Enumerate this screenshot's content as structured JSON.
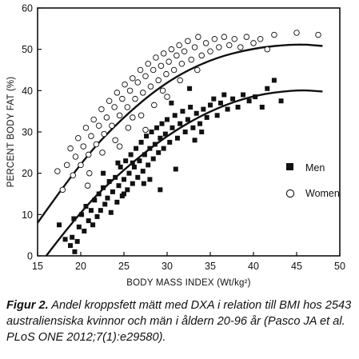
{
  "chart_data": {
    "type": "scatter",
    "title": "",
    "xlabel": "BODY MASS INDEX (Wt/kg²)",
    "ylabel": "PERCENT BODY FAT (%)",
    "xlim": [
      15,
      50
    ],
    "ylim": [
      0,
      60
    ],
    "xticks": [
      "15",
      "20",
      "25",
      "30",
      "35",
      "40",
      "45",
      "50"
    ],
    "yticks": [
      "0",
      "10",
      "20",
      "30",
      "40",
      "50",
      "60"
    ],
    "legend_position": "right",
    "series": [
      {
        "name": "Men",
        "marker": "filled-square",
        "color": "#111111",
        "points": [
          [
            17.5,
            7.5
          ],
          [
            18.2,
            4
          ],
          [
            18.8,
            2.5
          ],
          [
            19,
            4.5
          ],
          [
            19.3,
            1
          ],
          [
            19.6,
            3.5
          ],
          [
            19.2,
            9
          ],
          [
            19.8,
            7
          ],
          [
            20.1,
            10
          ],
          [
            20.4,
            6
          ],
          [
            20.6,
            12
          ],
          [
            20.9,
            8.5
          ],
          [
            21.2,
            11
          ],
          [
            21.4,
            7.5
          ],
          [
            21.6,
            13.5
          ],
          [
            21.9,
            9.5
          ],
          [
            22.1,
            15
          ],
          [
            22.3,
            11
          ],
          [
            22.6,
            16.5
          ],
          [
            22.8,
            12.5
          ],
          [
            23.1,
            14
          ],
          [
            23.3,
            18
          ],
          [
            23.5,
            10.5
          ],
          [
            23.7,
            15.5
          ],
          [
            24,
            19
          ],
          [
            24.2,
            13
          ],
          [
            24.4,
            17
          ],
          [
            24.6,
            21.5
          ],
          [
            24.8,
            14.5
          ],
          [
            25,
            18.5
          ],
          [
            25.2,
            23
          ],
          [
            25.4,
            16
          ],
          [
            25.6,
            20
          ],
          [
            25.8,
            24.5
          ],
          [
            26,
            17.5
          ],
          [
            26.2,
            21.5
          ],
          [
            26.4,
            26
          ],
          [
            26.6,
            19
          ],
          [
            26.8,
            23
          ],
          [
            27,
            27.5
          ],
          [
            27.2,
            20.5
          ],
          [
            27.4,
            24.5
          ],
          [
            27.6,
            29
          ],
          [
            27.8,
            22
          ],
          [
            28,
            26
          ],
          [
            28.2,
            30
          ],
          [
            28.4,
            23.5
          ],
          [
            28.6,
            27
          ],
          [
            28.8,
            31
          ],
          [
            29,
            25
          ],
          [
            29.2,
            28.5
          ],
          [
            29.4,
            32
          ],
          [
            29.6,
            26
          ],
          [
            29.8,
            29.5
          ],
          [
            30,
            33
          ],
          [
            30.3,
            27.5
          ],
          [
            30.6,
            31
          ],
          [
            30.9,
            34
          ],
          [
            31.2,
            28.5
          ],
          [
            31.5,
            32
          ],
          [
            31.8,
            35
          ],
          [
            32.1,
            30
          ],
          [
            32.4,
            33
          ],
          [
            32.7,
            36
          ],
          [
            33,
            31
          ],
          [
            33.4,
            34.5
          ],
          [
            33.8,
            32
          ],
          [
            34.2,
            35.5
          ],
          [
            34.6,
            33.5
          ],
          [
            35,
            36.5
          ],
          [
            35.4,
            38
          ],
          [
            35.8,
            34
          ],
          [
            36.2,
            37
          ],
          [
            36.6,
            39
          ],
          [
            37,
            35.5
          ],
          [
            37.6,
            38
          ],
          [
            38.2,
            36
          ],
          [
            38.8,
            39
          ],
          [
            39.5,
            37.5
          ],
          [
            40.2,
            38.5
          ],
          [
            41,
            36
          ],
          [
            41.6,
            40.5
          ],
          [
            42.4,
            42.5
          ],
          [
            43.2,
            37.5
          ],
          [
            29.2,
            16
          ],
          [
            31,
            21
          ],
          [
            28,
            18.5
          ],
          [
            25,
            15
          ],
          [
            30.5,
            37
          ],
          [
            33.2,
            28
          ],
          [
            26,
            22.5
          ],
          [
            27.3,
            17.5
          ],
          [
            24.3,
            22.5
          ],
          [
            22.6,
            20
          ],
          [
            32.6,
            40.5
          ],
          [
            34,
            30
          ]
        ]
      },
      {
        "name": "Women",
        "marker": "open-circle",
        "color": "#111111",
        "points": [
          [
            17.3,
            20.5
          ],
          [
            17.9,
            16
          ],
          [
            18.4,
            22
          ],
          [
            18.8,
            26
          ],
          [
            19.1,
            19.5
          ],
          [
            19.4,
            24
          ],
          [
            19.7,
            28.5
          ],
          [
            20,
            22
          ],
          [
            20.3,
            26.5
          ],
          [
            20.6,
            31
          ],
          [
            20.9,
            24.5
          ],
          [
            21.2,
            29
          ],
          [
            21.5,
            33
          ],
          [
            21.8,
            27
          ],
          [
            22.1,
            31.5
          ],
          [
            22.4,
            35.5
          ],
          [
            22.7,
            29.5
          ],
          [
            23,
            33.5
          ],
          [
            23.3,
            37.5
          ],
          [
            23.6,
            31.5
          ],
          [
            23.9,
            36
          ],
          [
            24.2,
            39.5
          ],
          [
            24.5,
            34
          ],
          [
            24.8,
            38
          ],
          [
            25.1,
            41.5
          ],
          [
            25.4,
            36
          ],
          [
            25.7,
            40
          ],
          [
            26,
            43
          ],
          [
            26.3,
            38
          ],
          [
            26.6,
            42
          ],
          [
            26.9,
            45
          ],
          [
            27.2,
            39.5
          ],
          [
            27.5,
            43.5
          ],
          [
            27.8,
            46.5
          ],
          [
            28.1,
            41
          ],
          [
            28.4,
            45
          ],
          [
            28.7,
            48
          ],
          [
            29,
            42.5
          ],
          [
            29.3,
            46
          ],
          [
            29.6,
            49
          ],
          [
            29.9,
            44
          ],
          [
            30.2,
            47
          ],
          [
            30.5,
            50
          ],
          [
            30.8,
            45
          ],
          [
            31.1,
            48.5
          ],
          [
            31.4,
            51
          ],
          [
            31.7,
            46.5
          ],
          [
            32,
            49.5
          ],
          [
            32.4,
            52
          ],
          [
            32.8,
            47.5
          ],
          [
            33.2,
            50.5
          ],
          [
            33.6,
            53
          ],
          [
            34,
            48.5
          ],
          [
            34.5,
            51.5
          ],
          [
            35,
            49.5
          ],
          [
            35.5,
            52.5
          ],
          [
            36,
            50.5
          ],
          [
            36.6,
            53
          ],
          [
            37.2,
            51
          ],
          [
            37.8,
            52.5
          ],
          [
            38.5,
            50.5
          ],
          [
            39.2,
            53
          ],
          [
            40,
            51.5
          ],
          [
            40.8,
            52.5
          ],
          [
            41.6,
            50
          ],
          [
            42.4,
            53.5
          ],
          [
            45,
            54
          ],
          [
            47.5,
            53.5
          ],
          [
            24,
            28
          ],
          [
            25.5,
            31
          ],
          [
            27,
            34
          ],
          [
            28.5,
            36.5
          ],
          [
            30,
            38.5
          ],
          [
            22.5,
            25
          ],
          [
            26,
            33.5
          ],
          [
            29.5,
            40
          ],
          [
            31.5,
            42.5
          ],
          [
            33.5,
            45
          ],
          [
            21,
            20
          ],
          [
            24.5,
            26.5
          ],
          [
            27.5,
            30.5
          ],
          [
            20.8,
            17
          ]
        ]
      }
    ],
    "fit_curves": [
      {
        "name": "Women",
        "points": [
          [
            15,
            8
          ],
          [
            20,
            22.8
          ],
          [
            25,
            33.8
          ],
          [
            30,
            42.3
          ],
          [
            35,
            47.6
          ],
          [
            40,
            50.3
          ],
          [
            45,
            51.3
          ],
          [
            48,
            50.8
          ]
        ]
      },
      {
        "name": "Men",
        "points": [
          [
            16,
            0
          ],
          [
            20,
            11
          ],
          [
            25,
            21
          ],
          [
            30,
            29.2
          ],
          [
            35,
            35.2
          ],
          [
            40,
            38.9
          ],
          [
            45,
            40.2
          ],
          [
            48,
            39.8
          ]
        ]
      }
    ]
  },
  "caption": {
    "label": "Figur 2.",
    "text": " Andel kroppsfett mätt med DXA i relation till BMI hos 2543 australiensiska kvinnor och män i åldern 20-96 år (Pasco JA et al. PLoS ONE 2012;7(1):e29580)."
  }
}
